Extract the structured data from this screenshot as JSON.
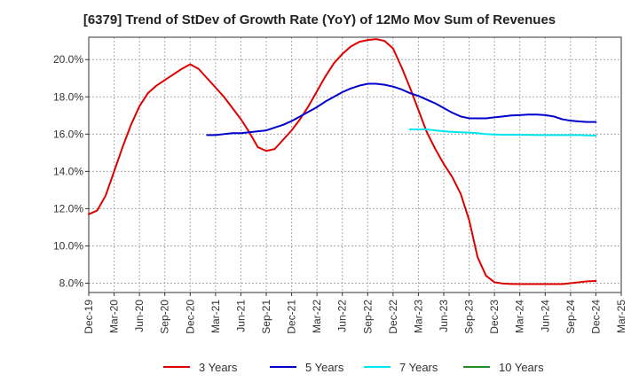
{
  "chart_data": {
    "type": "line",
    "title": "[6379]  Trend of StDev of Growth Rate (YoY) of 12Mo Mov Sum of Revenues",
    "xlabel": "",
    "ylabel": "",
    "ylim": [
      7.5,
      21.2
    ],
    "y_ticks": [
      8.0,
      10.0,
      12.0,
      14.0,
      16.0,
      18.0,
      20.0
    ],
    "y_tick_labels": [
      "8.0%",
      "10.0%",
      "12.0%",
      "14.0%",
      "16.0%",
      "18.0%",
      "20.0%"
    ],
    "x_tick_labels": [
      "Dec-19",
      "Mar-20",
      "Jun-20",
      "Sep-20",
      "Dec-20",
      "Mar-21",
      "Jun-21",
      "Sep-21",
      "Dec-21",
      "Mar-22",
      "Jun-22",
      "Sep-22",
      "Dec-22",
      "Mar-23",
      "Jun-23",
      "Sep-23",
      "Dec-23",
      "Mar-24",
      "Jun-24",
      "Sep-24",
      "Dec-24",
      "Mar-25"
    ],
    "x_month_range": [
      0,
      63
    ],
    "grid": true,
    "legend_position": "bottom",
    "series": [
      {
        "name": "3 Years",
        "color": "#dd0000",
        "x": [
          0,
          1,
          2,
          3,
          4,
          5,
          6,
          7,
          8,
          9,
          10,
          11,
          12,
          13,
          14,
          15,
          16,
          17,
          18,
          19,
          20,
          21,
          22,
          23,
          24,
          25,
          26,
          27,
          28,
          29,
          30,
          31,
          32,
          33,
          34,
          35,
          36,
          37,
          38,
          39,
          40,
          41,
          42,
          43,
          44,
          45,
          46,
          47,
          48,
          49,
          50,
          51,
          52,
          53,
          54,
          55,
          56,
          57,
          58,
          59,
          60
        ],
        "values": [
          11.7,
          11.9,
          12.7,
          14.0,
          15.3,
          16.5,
          17.5,
          18.2,
          18.6,
          18.9,
          19.2,
          19.5,
          19.75,
          19.5,
          19.0,
          18.5,
          18.0,
          17.4,
          16.8,
          16.1,
          15.3,
          15.1,
          15.2,
          15.7,
          16.2,
          16.8,
          17.5,
          18.3,
          19.1,
          19.8,
          20.3,
          20.7,
          20.95,
          21.05,
          21.1,
          21.0,
          20.6,
          19.6,
          18.5,
          17.3,
          16.1,
          15.2,
          14.4,
          13.7,
          12.8,
          11.4,
          9.4,
          8.4,
          8.05,
          7.98,
          7.96,
          7.95,
          7.95,
          7.95,
          7.95,
          7.95,
          7.95,
          8.0,
          8.05,
          8.1,
          8.12
        ]
      },
      {
        "name": "5 Years",
        "color": "#0000cc",
        "x": [
          14,
          15,
          16,
          17,
          18,
          19,
          20,
          21,
          22,
          23,
          24,
          25,
          26,
          27,
          28,
          29,
          30,
          31,
          32,
          33,
          34,
          35,
          36,
          37,
          38,
          39,
          40,
          41,
          42,
          43,
          44,
          45,
          46,
          47,
          48,
          49,
          50,
          51,
          52,
          53,
          54,
          55,
          56,
          57,
          58,
          59,
          60
        ],
        "values": [
          15.95,
          15.95,
          16.0,
          16.05,
          16.05,
          16.1,
          16.15,
          16.2,
          16.35,
          16.5,
          16.7,
          16.95,
          17.2,
          17.45,
          17.75,
          18.0,
          18.25,
          18.45,
          18.6,
          18.7,
          18.7,
          18.65,
          18.55,
          18.4,
          18.2,
          18.05,
          17.85,
          17.65,
          17.4,
          17.15,
          16.95,
          16.85,
          16.85,
          16.85,
          16.9,
          16.95,
          17.0,
          17.02,
          17.05,
          17.05,
          17.02,
          16.95,
          16.8,
          16.72,
          16.68,
          16.65,
          16.65
        ]
      },
      {
        "name": "7 Years",
        "color": "#00e5ee",
        "x": [
          38,
          39,
          40,
          41,
          42,
          43,
          44,
          45,
          46,
          47,
          48,
          49,
          50,
          51,
          52,
          53,
          54,
          55,
          56,
          57,
          58,
          59,
          60
        ],
        "values": [
          16.25,
          16.25,
          16.25,
          16.2,
          16.15,
          16.12,
          16.1,
          16.08,
          16.05,
          16.0,
          15.98,
          15.97,
          15.97,
          15.96,
          15.96,
          15.95,
          15.95,
          15.95,
          15.95,
          15.95,
          15.95,
          15.93,
          15.92
        ]
      },
      {
        "name": "10 Years",
        "color": "#228b22",
        "x": [],
        "values": []
      }
    ]
  }
}
